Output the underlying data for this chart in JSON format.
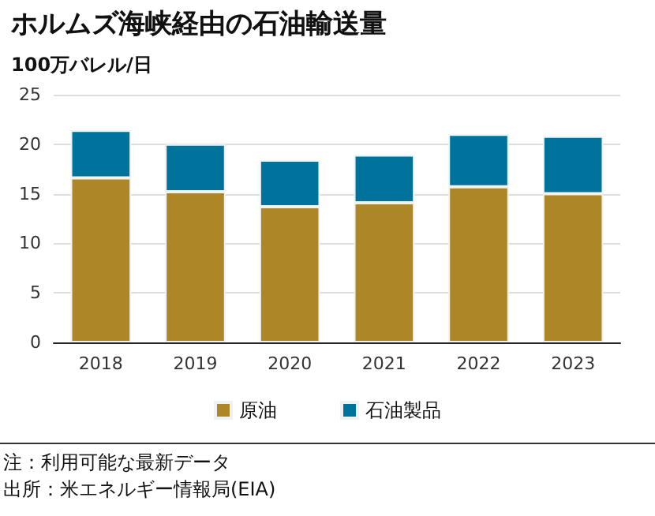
{
  "chart_data": {
    "type": "bar",
    "title": "ホルムズ海峡経由の石油輸送量",
    "ylabel": "100万バレル/日",
    "categories": [
      "2018",
      "2019",
      "2020",
      "2021",
      "2022",
      "2023"
    ],
    "series": [
      {
        "name": "原油",
        "color": "#ad8628",
        "values": [
          16.6,
          15.2,
          13.7,
          14.1,
          15.7,
          15.0
        ]
      },
      {
        "name": "石油製品",
        "color": "#00739c",
        "values": [
          4.8,
          4.8,
          4.7,
          4.8,
          5.3,
          5.8
        ]
      }
    ],
    "stacked": true,
    "ylim": [
      0,
      25
    ],
    "yticks": [
      0,
      5,
      10,
      15,
      20,
      25
    ],
    "grid": "y",
    "legend": "bottom",
    "annotations": [
      "注：利用可能な最新データ",
      "出所：米エネルギー情報局(EIA)"
    ]
  }
}
